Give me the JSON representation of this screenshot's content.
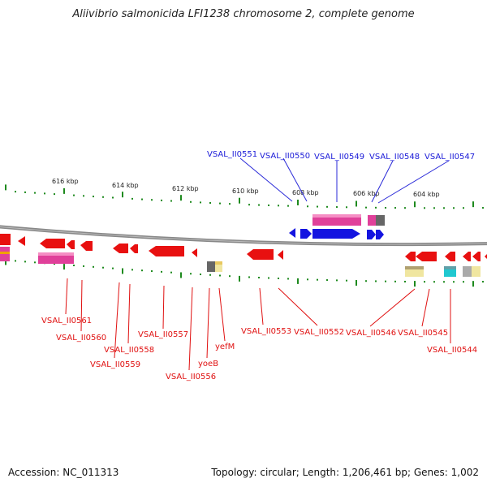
{
  "title": "Aliivibrio salmonicida LFI1238 chromosome 2, complete genome",
  "footer": {
    "accession": "Accession: NC_011313",
    "summary": "Topology: circular; Length: 1,206,461 bp; Genes: 1,002"
  },
  "kbp_ticks": [
    "616 kbp",
    "614 kbp",
    "612 kbp",
    "610 kbp",
    "608 kbp",
    "606 kbp",
    "604 kbp"
  ],
  "forward_gene_labels": [
    "VSAL_II0551",
    "VSAL_II0550",
    "VSAL_II0549",
    "VSAL_II0548",
    "VSAL_II0547"
  ],
  "reverse_gene_labels": [
    "VSAL_II0561",
    "VSAL_II0560",
    "VSAL_II0558",
    "VSAL_II0559",
    "VSAL_II0557",
    "VSAL_II0556",
    "yoeB",
    "yefM",
    "VSAL_II0553",
    "VSAL_II0552",
    "VSAL_II0546",
    "VSAL_II0545",
    "VSAL_II0544"
  ],
  "colors": {
    "forward_gene": "#1414e0",
    "reverse_gene": "#e81010",
    "tick_green": "#1e8a1e",
    "backbone": "#777777",
    "feature_pink": "#e0409a",
    "feature_yellow": "#f0e6a0",
    "feature_cyan": "#20c8d0",
    "feature_grey": "#888888"
  }
}
